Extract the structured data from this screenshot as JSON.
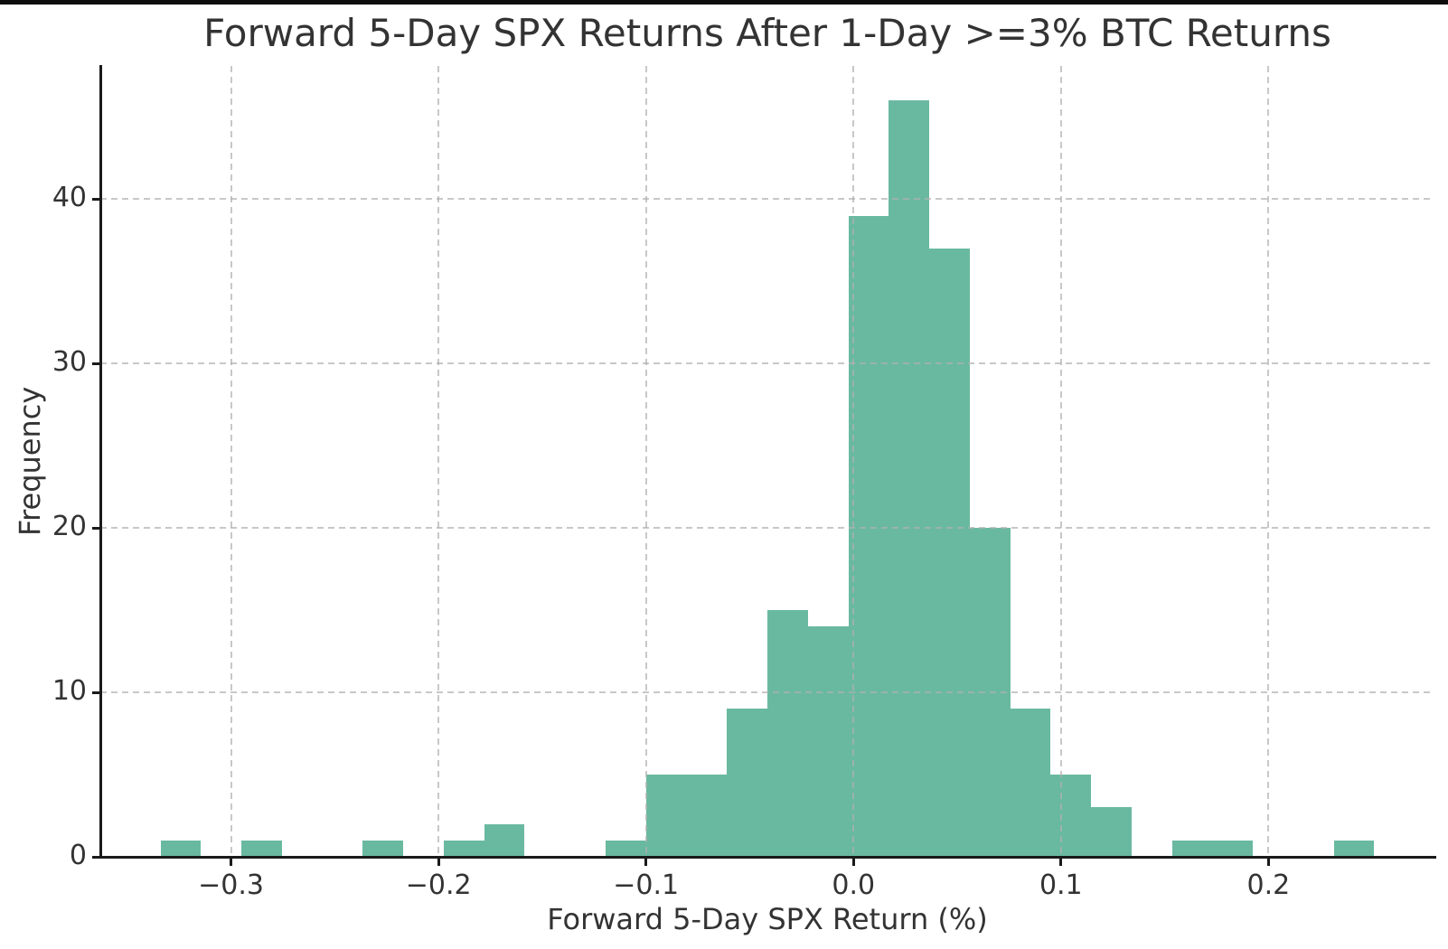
{
  "page": {
    "background": "#ffffff",
    "top_strip_color": "#0d0d0d"
  },
  "chart_data": {
    "type": "bar",
    "subtype": "histogram",
    "title": "Forward 5-Day SPX Returns After 1-Day >=3% BTC Returns",
    "xlabel": "Forward 5-Day SPX Return (%)",
    "ylabel": "Frequency",
    "grid": true,
    "grid_style": "dashed",
    "grid_above_bars": true,
    "legend": null,
    "bins": {
      "start": -0.334,
      "width": 0.0195,
      "counts": [
        1,
        0,
        1,
        0,
        0,
        1,
        0,
        1,
        2,
        0,
        0,
        1,
        5,
        5,
        9,
        15,
        14,
        39,
        46,
        37,
        20,
        9,
        5,
        3,
        0,
        1,
        1,
        0,
        0,
        1
      ]
    },
    "xlim": [
      -0.363,
      0.28
    ],
    "ylim": [
      0,
      48.1
    ],
    "xticks": [
      {
        "v": -0.3,
        "label": "−0.3"
      },
      {
        "v": -0.2,
        "label": "−0.2"
      },
      {
        "v": -0.1,
        "label": "−0.1"
      },
      {
        "v": 0.0,
        "label": "0.0"
      },
      {
        "v": 0.1,
        "label": "0.1"
      },
      {
        "v": 0.2,
        "label": "0.2"
      }
    ],
    "yticks": [
      {
        "v": 0,
        "label": "0"
      },
      {
        "v": 10,
        "label": "10"
      },
      {
        "v": 20,
        "label": "20"
      },
      {
        "v": 30,
        "label": "30"
      },
      {
        "v": 40,
        "label": "40"
      }
    ],
    "colors": {
      "bar": "#69b9a0",
      "grid": "#b0b0b0",
      "grid_alpha": 0.7,
      "axis": "#1a1a1a",
      "text": "#333333"
    }
  }
}
